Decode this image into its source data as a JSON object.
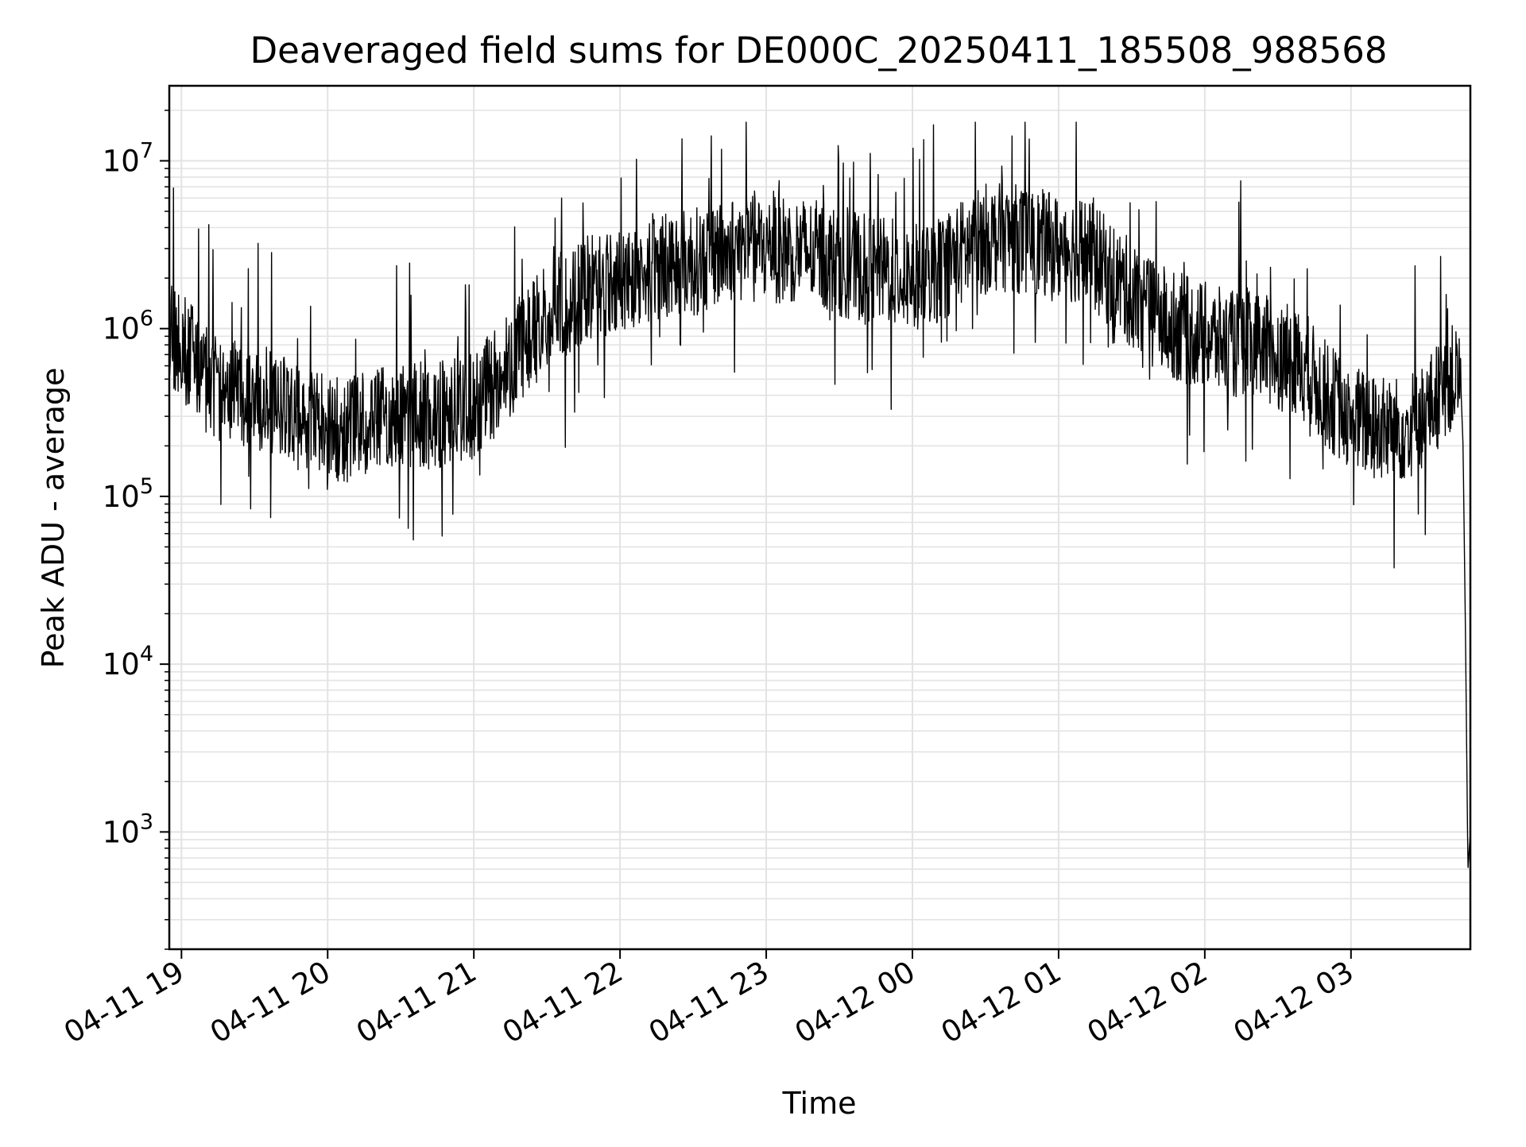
{
  "chart_data": {
    "type": "line",
    "title": "Deaveraged field sums for DE000C_20250411_185508_988568",
    "xlabel": "Time",
    "ylabel": "Peak ADU - average",
    "yscale": "log",
    "ylim": [
      200,
      28000000
    ],
    "xlim": [
      "2025-04-11 18:55",
      "2025-04-12 03:49"
    ],
    "grid": true,
    "line_color": "#000000",
    "grid_color": "#e3e3e3",
    "x_ticks": [
      {
        "t": "2025-04-11 19:00",
        "label": "04-11 19"
      },
      {
        "t": "2025-04-11 20:00",
        "label": "04-11 20"
      },
      {
        "t": "2025-04-11 21:00",
        "label": "04-11 21"
      },
      {
        "t": "2025-04-11 22:00",
        "label": "04-11 22"
      },
      {
        "t": "2025-04-11 23:00",
        "label": "04-11 23"
      },
      {
        "t": "2025-04-12 00:00",
        "label": "04-12 00"
      },
      {
        "t": "2025-04-12 01:00",
        "label": "04-12 01"
      },
      {
        "t": "2025-04-12 02:00",
        "label": "04-12 02"
      },
      {
        "t": "2025-04-12 03:00",
        "label": "04-12 03"
      }
    ],
    "y_ticks": [
      {
        "value": 1000,
        "base": "10",
        "exp": "3"
      },
      {
        "value": 10000,
        "base": "10",
        "exp": "4"
      },
      {
        "value": 100000,
        "base": "10",
        "exp": "5"
      },
      {
        "value": 1000000,
        "base": "10",
        "exp": "6"
      },
      {
        "value": 10000000,
        "base": "10",
        "exp": "7"
      }
    ],
    "series": [
      {
        "x": [
          "2025-04-11 18:55",
          "2025-04-11 19:00",
          "2025-04-11 19:10",
          "2025-04-11 19:20",
          "2025-04-11 19:30",
          "2025-04-11 19:40",
          "2025-04-11 19:50",
          "2025-04-11 20:00",
          "2025-04-11 20:10",
          "2025-04-11 20:20",
          "2025-04-11 20:30",
          "2025-04-11 20:40",
          "2025-04-11 20:50",
          "2025-04-11 21:00",
          "2025-04-11 21:10",
          "2025-04-11 21:20",
          "2025-04-11 21:30",
          "2025-04-11 21:40",
          "2025-04-11 21:50",
          "2025-04-11 22:00",
          "2025-04-11 22:10",
          "2025-04-11 22:20",
          "2025-04-11 22:30",
          "2025-04-11 22:40",
          "2025-04-11 22:50",
          "2025-04-11 23:00",
          "2025-04-11 23:10",
          "2025-04-11 23:20",
          "2025-04-11 23:30",
          "2025-04-11 23:40",
          "2025-04-11 23:50",
          "2025-04-12 00:00",
          "2025-04-12 00:10",
          "2025-04-12 00:20",
          "2025-04-12 00:30",
          "2025-04-12 00:40",
          "2025-04-12 00:50",
          "2025-04-12 01:00",
          "2025-04-12 01:10",
          "2025-04-12 01:20",
          "2025-04-12 01:30",
          "2025-04-12 01:40",
          "2025-04-12 01:50",
          "2025-04-12 02:00",
          "2025-04-12 02:10",
          "2025-04-12 02:20",
          "2025-04-12 02:30",
          "2025-04-12 02:40",
          "2025-04-12 02:50",
          "2025-04-12 03:00",
          "2025-04-12 03:10",
          "2025-04-12 03:20",
          "2025-04-12 03:30",
          "2025-04-12 03:40",
          "2025-04-12 03:45",
          "2025-04-12 03:46",
          "2025-04-12 03:47",
          "2025-04-12 03:48",
          "2025-04-12 03:49"
        ],
        "values": [
          1000000,
          800000,
          500000,
          450000,
          400000,
          350000,
          280000,
          250000,
          250000,
          280000,
          300000,
          300000,
          320000,
          350000,
          500000,
          800000,
          1200000,
          1500000,
          1800000,
          2000000,
          2200000,
          2500000,
          2500000,
          2800000,
          3000000,
          3000000,
          3000000,
          2800000,
          2500000,
          2300000,
          2200000,
          2000000,
          2200000,
          2800000,
          3500000,
          3500000,
          3300000,
          3000000,
          3000000,
          2200000,
          1600000,
          1200000,
          1000000,
          900000,
          800000,
          800000,
          700000,
          600000,
          400000,
          300000,
          250000,
          250000,
          300000,
          500000,
          500000,
          200000,
          15000,
          600,
          1000
        ],
        "variability": "heavy point-to-point noise, roughly half a decade around the trend; spikes reach about 1.7e7"
      }
    ]
  }
}
